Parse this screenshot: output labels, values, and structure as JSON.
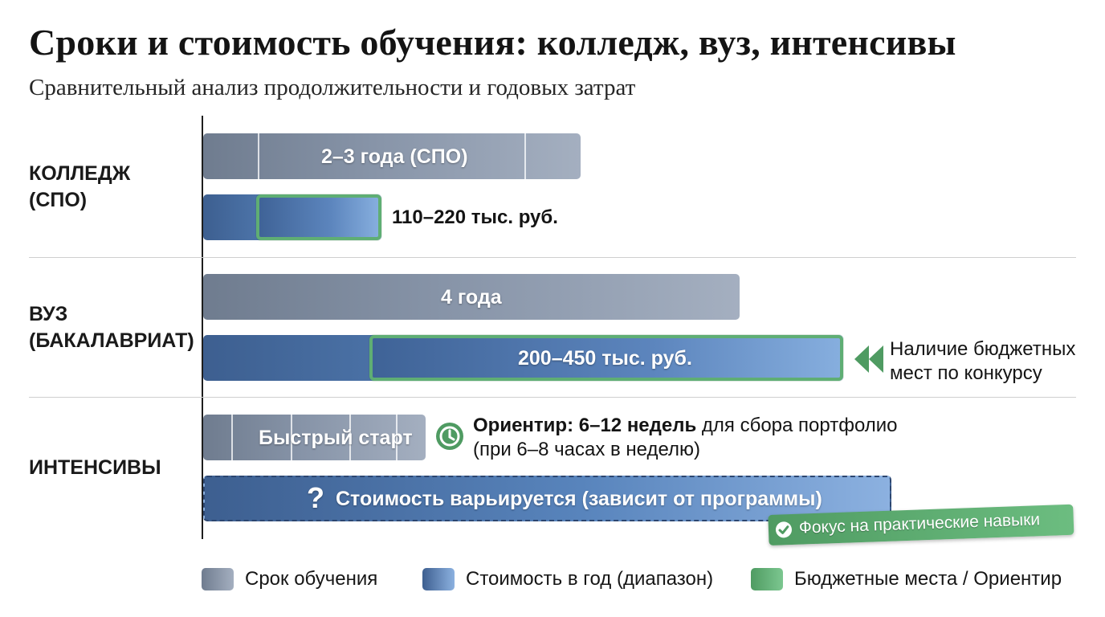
{
  "chart_data": {
    "type": "bar",
    "title": "Сроки и стоимость обучения: колледж, вуз, интенсивы",
    "subtitle": "Сравнительный анализ продолжительности и годовых затрат",
    "categories": [
      "КОЛЛЕДЖ\n(СПО)",
      "ВУЗ\n(БАКАЛАВРИАТ)",
      "ИНТЕНСИВЫ"
    ],
    "duration": {
      "college": {
        "label": "2–3 года (СПО)",
        "value_years": [
          2,
          3
        ]
      },
      "university": {
        "label": "4 года",
        "value_years": 4
      },
      "intensive": {
        "label": "Быстрый старт",
        "value_weeks": [
          6,
          12
        ]
      }
    },
    "cost": {
      "college": {
        "label": "110–220 тыс. руб.",
        "range_thousand_rub": [
          110,
          220
        ]
      },
      "university": {
        "label": "200–450 тыс. руб.",
        "range_thousand_rub": [
          200,
          450
        ]
      },
      "intensive": {
        "label": "Стоимость варьируется (зависит от программы)",
        "icon": "question-icon"
      }
    },
    "annotations": {
      "university_note": "Наличие бюджетных\nмест по конкурсу",
      "intensive_note_bold": "Ориентир: 6–12 недель",
      "intensive_note_rest": " для сбора портфолио",
      "intensive_note_line2": "(при 6–8 часах в неделю)",
      "focus_badge": "Фокус на практические навыки"
    },
    "legend": [
      {
        "label": "Срок обучения",
        "color": "#7f8b9d"
      },
      {
        "label": "Стоимость в год (диапазон)",
        "color": "#4f79b0"
      },
      {
        "label": "Бюджетные места / Ориентир",
        "color": "#5fae74"
      }
    ],
    "legend_position": "bottom",
    "colors": {
      "duration": "#7f8b9d",
      "cost": "#4f79b0",
      "highlight": "#5fae74"
    }
  }
}
